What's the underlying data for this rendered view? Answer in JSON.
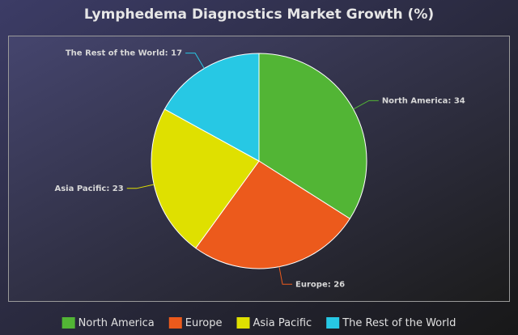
{
  "chart_data": {
    "type": "pie",
    "title": "Lymphedema Diagnostics Market Growth (%)",
    "categories": [
      "North America",
      "Europe",
      "Asia Pacific",
      "The Rest of the World"
    ],
    "values": [
      34,
      26,
      23,
      17
    ],
    "value_labels": [
      "North America: 34",
      "Europe: 26",
      "Asia Pacific: 23",
      "The Rest of the World: 17"
    ],
    "colors": [
      "#52b535",
      "#ec5a1c",
      "#dfe000",
      "#27c8e4"
    ],
    "legend": "bottom"
  }
}
